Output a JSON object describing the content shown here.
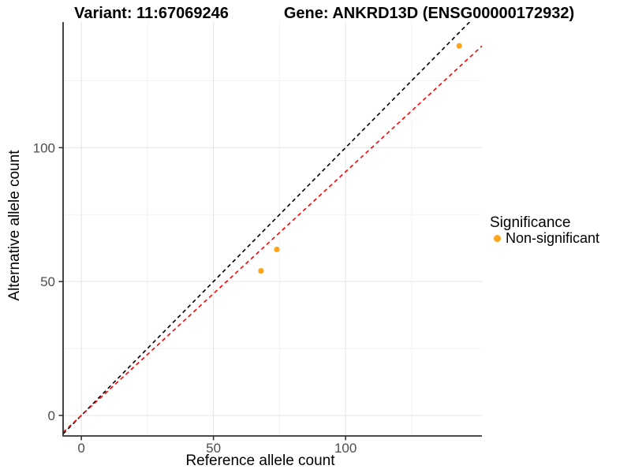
{
  "chart_data": {
    "type": "scatter",
    "title_left": "Variant: 11:67069246",
    "title_right": "Gene: ANKRD13D (ENSG00000172932)",
    "xlabel": "Reference allele count",
    "ylabel": "Alternative allele count",
    "xlim": [
      -6.9,
      151.6
    ],
    "ylim": [
      -7.65,
      146.9
    ],
    "x_ticks": [
      0,
      50,
      100
    ],
    "y_ticks": [
      0,
      50,
      100
    ],
    "x_minor_ticks": [
      25,
      75,
      125
    ],
    "y_minor_ticks": [
      25,
      75,
      125
    ],
    "grid": {
      "major_color": "#E4E4E4",
      "minor_color": "#F2F2F2"
    },
    "axis_color": "#333333",
    "tick_label_color": "#4d4d4d",
    "series": [
      {
        "name": "Non-significant",
        "color": "#FFA41B",
        "marker": "circle",
        "points": [
          [
            68,
            54
          ],
          [
            74,
            62
          ],
          [
            143,
            138
          ]
        ]
      }
    ],
    "reference_lines": [
      {
        "name": "identity-line",
        "slope": 1.0,
        "intercept": 0,
        "color": "#000000",
        "style": "dashed"
      },
      {
        "name": "ratio-line",
        "slope": 0.91,
        "intercept": 0,
        "color": "#FF0000",
        "style": "dashed"
      }
    ],
    "legend": {
      "title": "Significance",
      "position": "right",
      "entries": [
        {
          "label": "Non-significant",
          "color": "#FFA41B"
        }
      ]
    }
  }
}
